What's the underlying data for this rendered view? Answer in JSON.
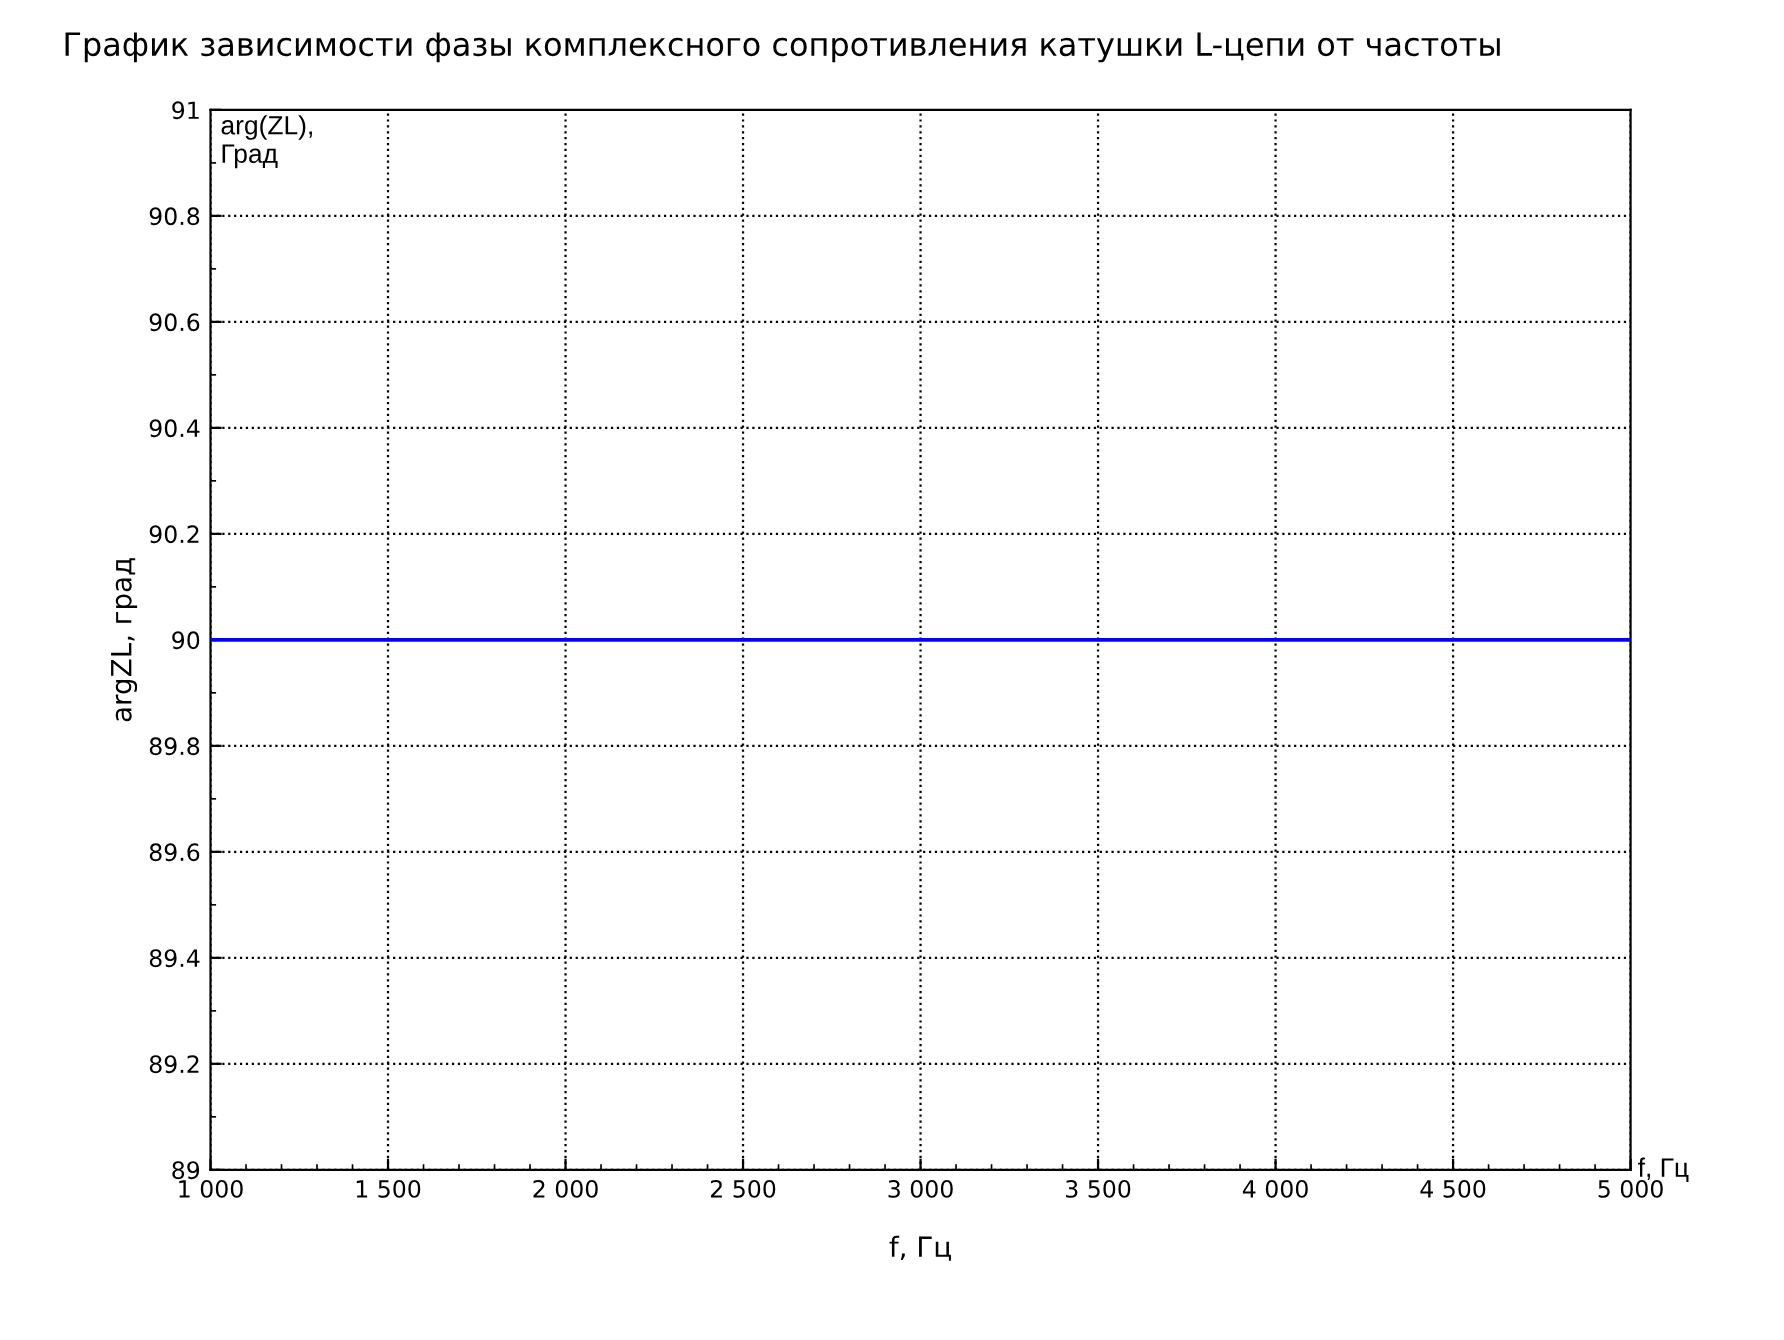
{
  "chart_data": {
    "type": "line",
    "title": "График зависимости фазы комплексного сопротивления катушки L-цепи от частоты",
    "xlabel": "f, Гц",
    "ylabel": "argZL, град",
    "annotations": [
      "arg(ZL),\nГрад",
      "f, Гц"
    ],
    "x": [
      1000,
      5000
    ],
    "series": [
      {
        "color": "#0000ff",
        "values": [
          90,
          90
        ]
      }
    ],
    "xlim": [
      1000,
      5000
    ],
    "xticks": [
      {
        "value": 1000,
        "label": "1 000"
      },
      {
        "value": 1500,
        "label": "1 500"
      },
      {
        "value": 2000,
        "label": "2 000"
      },
      {
        "value": 2500,
        "label": "2 500"
      },
      {
        "value": 3000,
        "label": "3 000"
      },
      {
        "value": 3500,
        "label": "3 500"
      },
      {
        "value": 4000,
        "label": "4 000"
      },
      {
        "value": 4500,
        "label": "4 500"
      },
      {
        "value": 5000,
        "label": "5 000"
      }
    ],
    "ylim": [
      89,
      91
    ],
    "yticks": [
      89,
      89.2,
      89.4,
      89.6,
      89.8,
      90,
      90.2,
      90.4,
      90.6,
      90.8,
      91
    ],
    "grid": true,
    "legend": false,
    "marker": "none",
    "line_style": "solid"
  }
}
